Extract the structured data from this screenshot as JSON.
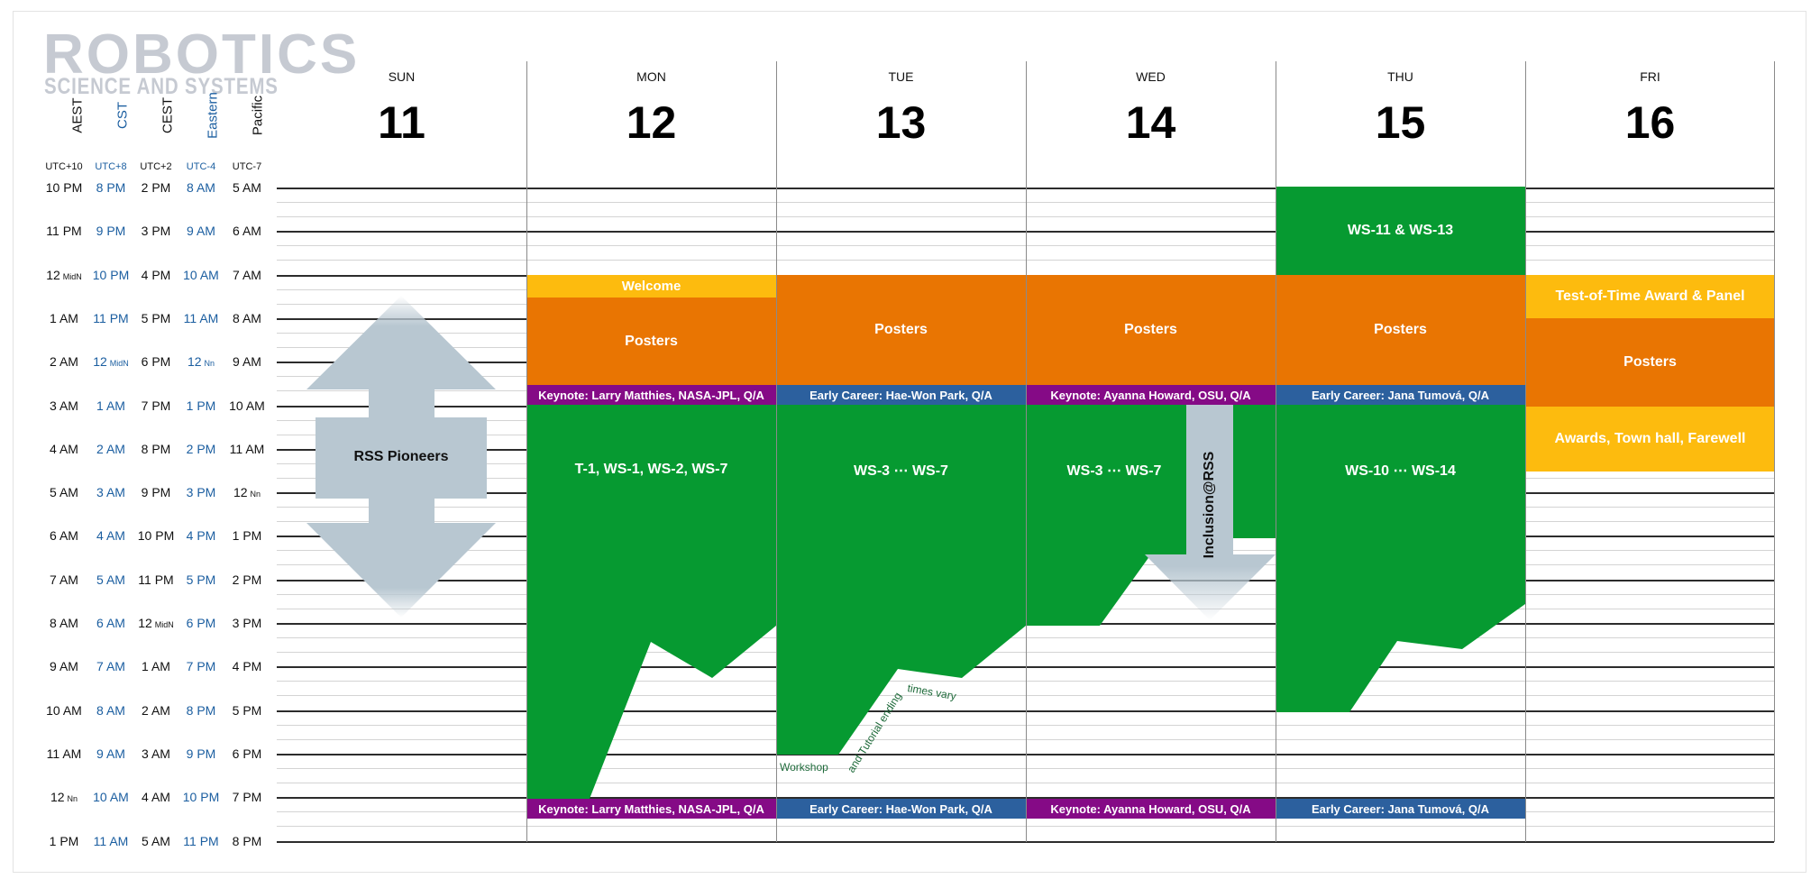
{
  "logo": {
    "line1": "ROBOTICS",
    "line2": "SCIENCE AND SYSTEMS"
  },
  "timezones": [
    {
      "name": "AEST",
      "offset": "UTC+10",
      "color": "#111111"
    },
    {
      "name": "CST",
      "offset": "UTC+8",
      "color": "#1b5ea0"
    },
    {
      "name": "CEST",
      "offset": "UTC+2",
      "color": "#111111"
    },
    {
      "name": "Eastern",
      "offset": "UTC-4",
      "color": "#1b5ea0"
    },
    {
      "name": "Pacific",
      "offset": "UTC-7",
      "color": "#111111"
    }
  ],
  "time_rows": [
    [
      "10 PM",
      "8 PM",
      "2 PM",
      "8 AM",
      "5 AM"
    ],
    [
      "11 PM",
      "9 PM",
      "3 PM",
      "9 AM",
      "6 AM"
    ],
    [
      "12 MidN",
      "10 PM",
      "4 PM",
      "10 AM",
      "7 AM"
    ],
    [
      "1 AM",
      "11 PM",
      "5 PM",
      "11 AM",
      "8 AM"
    ],
    [
      "2 AM",
      "12 MidN",
      "6 PM",
      "12 Nn",
      "9 AM"
    ],
    [
      "3 AM",
      "1 AM",
      "7 PM",
      "1 PM",
      "10 AM"
    ],
    [
      "4 AM",
      "2 AM",
      "8 PM",
      "2 PM",
      "11 AM"
    ],
    [
      "5 AM",
      "3 AM",
      "9 PM",
      "3 PM",
      "12 Nn"
    ],
    [
      "6 AM",
      "4 AM",
      "10 PM",
      "4 PM",
      "1 PM"
    ],
    [
      "7 AM",
      "5 AM",
      "11 PM",
      "5 PM",
      "2 PM"
    ],
    [
      "8 AM",
      "6 AM",
      "12 MidN",
      "6 PM",
      "3 PM"
    ],
    [
      "9 AM",
      "7 AM",
      "1 AM",
      "7 PM",
      "4 PM"
    ],
    [
      "10 AM",
      "8 AM",
      "2 AM",
      "8 PM",
      "5 PM"
    ],
    [
      "11 AM",
      "9 AM",
      "3 AM",
      "9 PM",
      "6 PM"
    ],
    [
      "12 Nn",
      "10 AM",
      "4 AM",
      "10 PM",
      "7 PM"
    ],
    [
      "1 PM",
      "11 AM",
      "5 AM",
      "11 PM",
      "8 PM"
    ]
  ],
  "days": [
    {
      "label": "SUN",
      "number": "11"
    },
    {
      "label": "MON",
      "number": "12"
    },
    {
      "label": "TUE",
      "number": "13"
    },
    {
      "label": "WED",
      "number": "14"
    },
    {
      "label": "THU",
      "number": "15"
    },
    {
      "label": "FRI",
      "number": "16"
    }
  ],
  "colors": {
    "welcome": "#fdbb0e",
    "posters": "#e97502",
    "keynote": "#850a86",
    "early_career": "#2c609e",
    "workshops": "#069a31",
    "arrow": "#b8c7d1",
    "workshop_note": "#1e6a3a"
  },
  "events": {
    "welcome": "Welcome",
    "posters": "Posters",
    "keynote_mon": "Keynote: Larry Matthies, NASA-JPL, Q/A",
    "early_tue": "Early Career: Hae-Won Park, Q/A",
    "keynote_wed": "Keynote: Ayanna Howard, OSU, Q/A",
    "early_thu": "Early Career: Jana Tumová, Q/A",
    "ws_mon": "T-1, WS-1, WS-2, WS-7",
    "ws_tue": "WS-3 ⋯ WS-7",
    "ws_wed": "WS-3 ⋯ WS-7",
    "ws_thu": "WS-10 ⋯ WS-14",
    "ws_thu_early": "WS-11 & WS-13",
    "test_of_time": "Test-of-Time Award & Panel",
    "awards": "Awards, Town hall, Farewell",
    "rss_pioneers": "RSS Pioneers",
    "inclusion": "Inclusion@RSS",
    "workshop_note_1": "Workshop",
    "workshop_note_2": "and Tutorial ending",
    "workshop_note_3": "times vary"
  }
}
